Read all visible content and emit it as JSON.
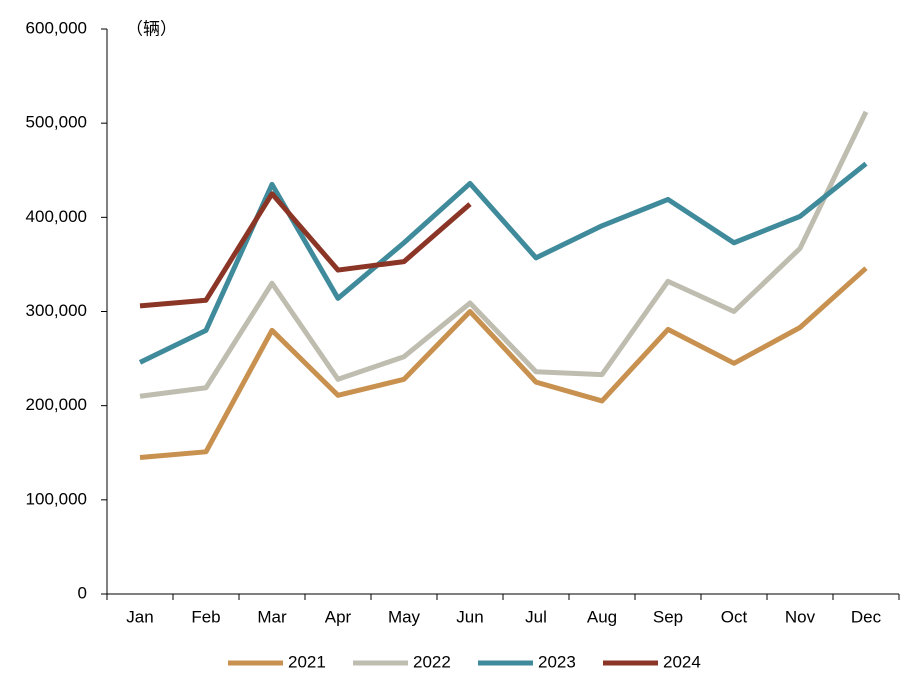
{
  "chart_data": {
    "type": "line",
    "unit_label": "（辆）",
    "categories": [
      "Jan",
      "Feb",
      "Mar",
      "Apr",
      "May",
      "Jun",
      "Jul",
      "Aug",
      "Sep",
      "Oct",
      "Nov",
      "Dec"
    ],
    "series": [
      {
        "name": "2021",
        "color": "#c8914f",
        "values": [
          145000,
          151000,
          280000,
          211000,
          228000,
          300000,
          225000,
          205000,
          281000,
          245000,
          283000,
          346000
        ]
      },
      {
        "name": "2022",
        "color": "#bfbdb0",
        "values": [
          210000,
          219000,
          330000,
          228000,
          252000,
          309000,
          236000,
          233000,
          332000,
          300000,
          367000,
          512000
        ]
      },
      {
        "name": "2023",
        "color": "#3f8a9b",
        "values": [
          246000,
          280000,
          435000,
          314000,
          373000,
          436000,
          357000,
          391000,
          419000,
          373000,
          401000,
          457000
        ]
      },
      {
        "name": "2024",
        "color": "#8b3526",
        "values": [
          306000,
          312000,
          425000,
          344000,
          353000,
          414000,
          null,
          null,
          null,
          null,
          null,
          null
        ]
      }
    ],
    "ylim": [
      0,
      600000
    ],
    "yticks": [
      0,
      {
        "value": 100000,
        "label": "100,000"
      },
      {
        "value": 200000,
        "label": "200,000"
      },
      {
        "value": 300000,
        "label": "300,000"
      },
      {
        "value": 400000,
        "label": "400,000"
      },
      {
        "value": 500000,
        "label": "500,000"
      },
      {
        "value": 600000,
        "label": "600,000"
      }
    ],
    "legend": "bottom"
  }
}
